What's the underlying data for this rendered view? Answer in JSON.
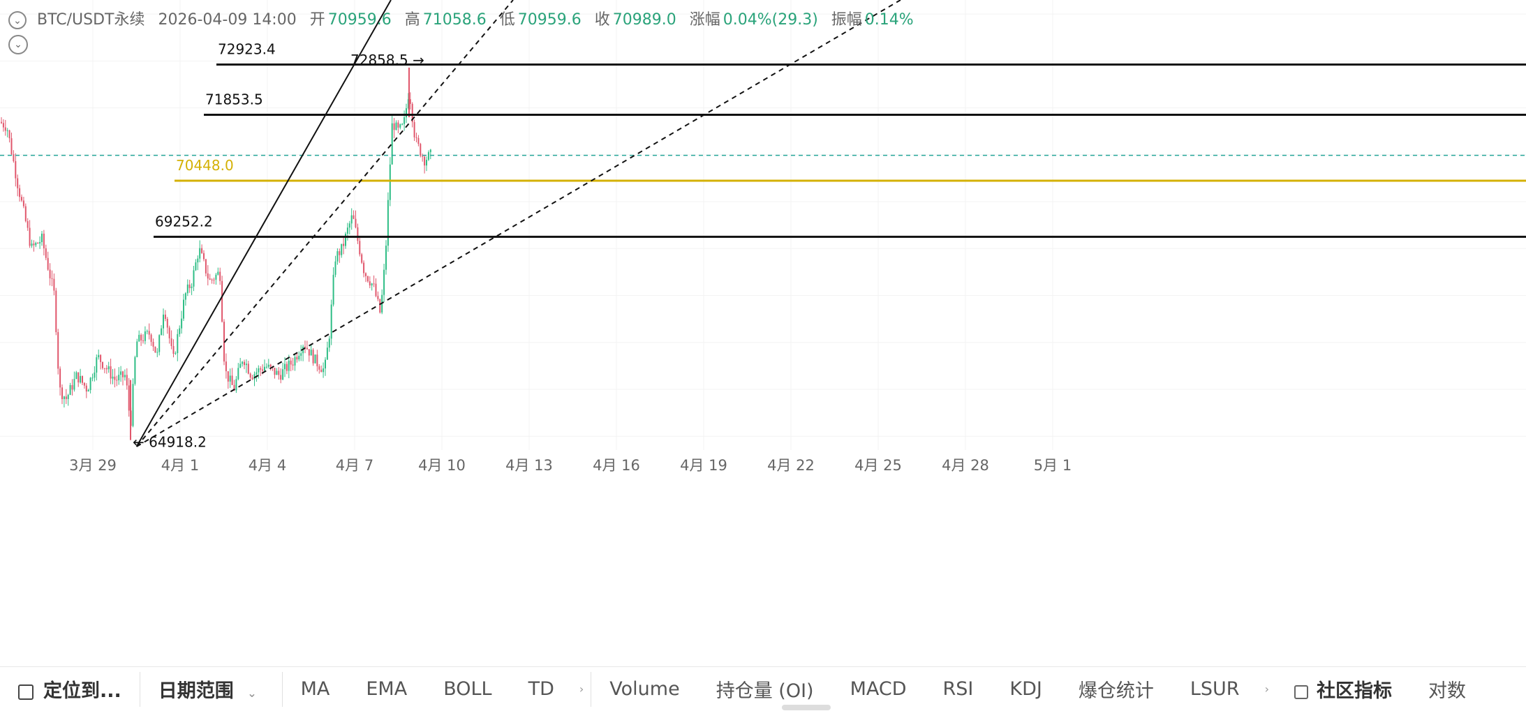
{
  "header": {
    "symbol": "BTC/USDT永续",
    "datetime": "2026-04-09 14:00",
    "open_label": "开",
    "open": "70959.6",
    "high_label": "高",
    "high": "71058.6",
    "low_label": "低",
    "low": "70959.6",
    "close_label": "收",
    "close": "70989.0",
    "change_label": "涨幅",
    "change": "0.04%(29.3)",
    "amp_label": "振幅",
    "amp": "0.14%"
  },
  "toolbar": {
    "locate": "定位到...",
    "date_range": "日期范围",
    "overlays": [
      "MA",
      "EMA",
      "BOLL",
      "TD"
    ],
    "indicators": [
      "Volume",
      "持仓量 (OI)",
      "MACD",
      "RSI",
      "KDJ",
      "爆仓统计",
      "LSUR"
    ],
    "community": "社区指标",
    "log_scale": "对数"
  },
  "colors": {
    "up": "#2ebd85",
    "down": "#e0566b",
    "level_line": "#111111",
    "highlight_level": "#d4b106",
    "current_price_line": "#26a69a",
    "text_value": "#2aa37a"
  },
  "chart_data": {
    "type": "candlestick",
    "interval": "1h",
    "x_ticks": [
      "3月 29",
      "4月 1",
      "4月 4",
      "4月 7",
      "4月 10",
      "4月 13",
      "4月 16",
      "4月 19",
      "4月 22",
      "4月 25",
      "4月 28",
      "5月 1"
    ],
    "horizontal_levels": [
      {
        "value": 72923.4,
        "label": "72923.4",
        "style": "solid",
        "color": "black"
      },
      {
        "value": 71853.5,
        "label": "71853.5",
        "style": "solid",
        "color": "black"
      },
      {
        "value": 70448.0,
        "label": "70448.0",
        "style": "solid",
        "color": "gold"
      },
      {
        "value": 69252.2,
        "label": "69252.2",
        "style": "solid",
        "color": "black"
      }
    ],
    "current_price": 70989.0,
    "annotations": [
      {
        "text": "72858.5 →",
        "value": 72858.5,
        "kind": "high"
      },
      {
        "text": "← 64918.2",
        "value": 64918.2,
        "kind": "low"
      }
    ],
    "trendlines": [
      {
        "style": "solid",
        "from": [
          "3月 30",
          64780
        ],
        "to": [
          "4月 7",
          74200
        ]
      },
      {
        "style": "dashed",
        "from": [
          "3月 30",
          64780
        ],
        "to": [
          "4月 9",
          74300
        ]
      },
      {
        "style": "dashed",
        "from": [
          "3月 30",
          64780
        ],
        "to": [
          "4月 25",
          74300
        ]
      }
    ],
    "ylim": [
      64500,
      74500
    ],
    "grid": true,
    "path_anchors": [
      [
        0,
        71700
      ],
      [
        10,
        71600
      ],
      [
        25,
        70400
      ],
      [
        45,
        69000
      ],
      [
        60,
        69200
      ],
      [
        78,
        68000
      ],
      [
        85,
        66000
      ],
      [
        95,
        65800
      ],
      [
        110,
        66300
      ],
      [
        125,
        66000
      ],
      [
        140,
        66700
      ],
      [
        165,
        66200
      ],
      [
        180,
        66300
      ],
      [
        187,
        65200
      ],
      [
        195,
        67000
      ],
      [
        215,
        67200
      ],
      [
        225,
        66700
      ],
      [
        235,
        67800
      ],
      [
        248,
        66600
      ],
      [
        265,
        68000
      ],
      [
        275,
        68300
      ],
      [
        285,
        69000
      ],
      [
        300,
        68300
      ],
      [
        315,
        68500
      ],
      [
        322,
        66400
      ],
      [
        335,
        66000
      ],
      [
        348,
        66700
      ],
      [
        360,
        66300
      ],
      [
        380,
        66500
      ],
      [
        400,
        66300
      ],
      [
        420,
        66600
      ],
      [
        435,
        67000
      ],
      [
        452,
        66600
      ],
      [
        465,
        66400
      ],
      [
        472,
        67200
      ],
      [
        480,
        68800
      ],
      [
        490,
        69000
      ],
      [
        498,
        69400
      ],
      [
        505,
        69700
      ],
      [
        512,
        69200
      ],
      [
        522,
        68500
      ],
      [
        535,
        68200
      ],
      [
        545,
        67600
      ],
      [
        552,
        68800
      ],
      [
        558,
        70600
      ],
      [
        562,
        71700
      ],
      [
        570,
        71500
      ],
      [
        578,
        71600
      ],
      [
        586,
        72400
      ],
      [
        595,
        71300
      ],
      [
        608,
        70900
      ],
      [
        617,
        70989
      ]
    ]
  }
}
